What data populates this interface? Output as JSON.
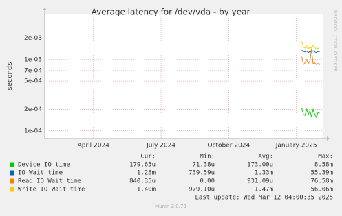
{
  "chart_data": {
    "type": "line",
    "title": "Average latency for /dev/vda - by year",
    "y_label": "seconds",
    "watermark": "RRDTOOL / TOBI OETIKER",
    "log_scale": true,
    "grid": true,
    "xlim": [
      2024.07,
      2025.1
    ],
    "xticks": [
      {
        "value": 2024.25,
        "label": "April 2024"
      },
      {
        "value": 2024.5,
        "label": "July 2024"
      },
      {
        "value": 2024.75,
        "label": "October 2024"
      },
      {
        "value": 2025.0,
        "label": "January 2025"
      }
    ],
    "ylim": [
      7.8e-05,
      0.0044
    ],
    "yticks": [
      {
        "value": 0.0001,
        "label": "1e-04"
      },
      {
        "value": 0.0002,
        "label": "2e-04"
      },
      {
        "value": 0.0005,
        "label": "5e-04"
      },
      {
        "value": 0.0007,
        "label": "7e-04"
      },
      {
        "value": 0.001,
        "label": "1e-03"
      },
      {
        "value": 0.002,
        "label": "2e-03"
      }
    ],
    "x": [
      2025.02,
      2025.026,
      2025.032,
      2025.038,
      2025.044,
      2025.05,
      2025.056,
      2025.062,
      2025.068,
      2025.074,
      2025.08,
      2025.086
    ],
    "series": [
      {
        "name": "Device IO time",
        "color": "#00cc00",
        "values": [
          0.00021,
          0.00017,
          0.000165,
          0.0002,
          0.00017,
          0.00019,
          0.00016,
          0.0002,
          0.00017,
          0.000155,
          0.00018,
          0.00018
        ]
      },
      {
        "name": "IO Wait time",
        "color": "#0066b3",
        "values": [
          0.00135,
          0.0013,
          0.00128,
          0.00132,
          0.00125,
          0.0013,
          0.00127,
          0.00133,
          0.00128,
          0.00125,
          0.0013,
          0.00128
        ]
      },
      {
        "name": "Read IO Wait time",
        "color": "#ff8000",
        "values": [
          0.0011,
          0.00085,
          0.0009,
          0.001,
          0.00088,
          0.00095,
          0.0014,
          0.00087,
          0.0009,
          0.00085,
          0.00088,
          0.00084
        ]
      },
      {
        "name": "Write IO Wait time",
        "color": "#ffcc00",
        "values": [
          0.0018,
          0.0015,
          0.00145,
          0.00155,
          0.0014,
          0.0015,
          0.00145,
          0.0016,
          0.0015,
          0.0014,
          0.00145,
          0.0014
        ]
      }
    ],
    "legend": {
      "headers": [
        "Cur:",
        "Min:",
        "Avg:",
        "Max:"
      ],
      "rows": [
        [
          "179.65u",
          "71.38u",
          "173.00u",
          "8.58m"
        ],
        [
          "1.28m",
          "739.59u",
          "1.33m",
          "55.39m"
        ],
        [
          "840.35u",
          "0.00",
          "931.09u",
          "76.58m"
        ],
        [
          "1.40m",
          "979.10u",
          "1.47m",
          "56.06m"
        ]
      ]
    },
    "last_update": "Last update: Wed Mar 12 04:00:35 2025",
    "footer": "Munin 2.0.73"
  }
}
